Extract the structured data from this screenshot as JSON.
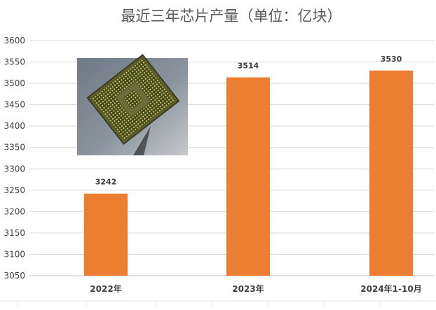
{
  "chart_data": {
    "type": "bar",
    "title": "最近三年芯片产量（单位：亿块）",
    "categories": [
      "2022年",
      "2023年",
      "2024年1-10月"
    ],
    "values": [
      3242,
      3514,
      3530
    ],
    "data_labels": [
      "3242",
      "3514",
      "3530"
    ],
    "ylim": [
      3050,
      3600
    ],
    "yticks": [
      3050,
      3100,
      3150,
      3200,
      3250,
      3300,
      3350,
      3400,
      3450,
      3500,
      3550,
      3600
    ],
    "xlabel": "",
    "ylabel": "",
    "grid": true,
    "legend": "none",
    "bar_color": "#ED7D31"
  },
  "image": {
    "subject": "cpu-chip-photo"
  }
}
